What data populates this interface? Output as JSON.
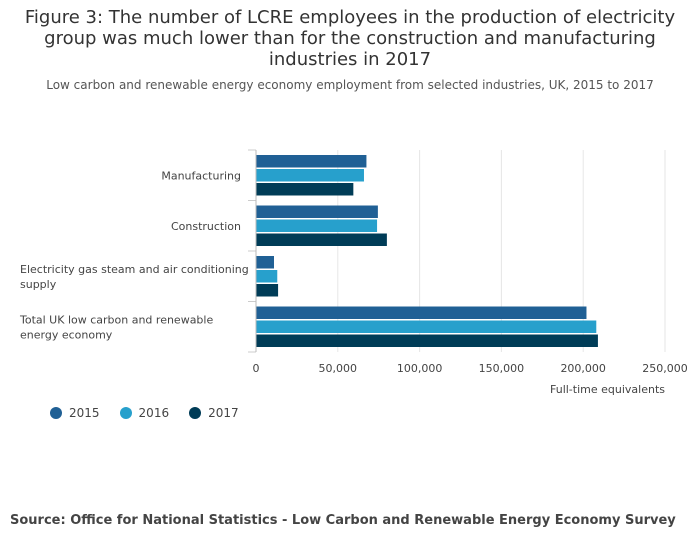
{
  "title_lines": [
    "Figure 3: The number of LCRE employees in the production of electricity",
    "group was much lower than for the construction and manufacturing",
    "industries in 2017"
  ],
  "subtitle": "Low carbon and renewable energy economy employment from selected industries, UK, 2015 to 2017",
  "source": "Source: Office for National Statistics - Low Carbon and Renewable Energy Economy Survey",
  "chart_data": {
    "type": "bar",
    "orientation": "horizontal",
    "categories": [
      [
        "Manufacturing"
      ],
      [
        "Construction"
      ],
      [
        "Electricity gas steam and air conditioning",
        "supply"
      ],
      [
        "Total UK low carbon and renewable",
        "energy economy"
      ]
    ],
    "series": [
      {
        "name": "2015",
        "color": "#206095",
        "values": [
          67500,
          74500,
          11000,
          202000
        ]
      },
      {
        "name": "2016",
        "color": "#27A0CC",
        "values": [
          66000,
          74000,
          13000,
          208000
        ]
      },
      {
        "name": "2017",
        "color": "#003C57",
        "values": [
          59500,
          80000,
          13500,
          209000
        ]
      }
    ],
    "xlim": [
      0,
      250000
    ],
    "xticks": [
      0,
      50000,
      100000,
      150000,
      200000,
      250000
    ],
    "xtick_labels": [
      "0",
      "50,000",
      "100,000",
      "150,000",
      "200,000",
      "250,000"
    ],
    "xlabel": "Full-time equivalents",
    "ylabel": "",
    "grid": true,
    "legend_position": "bottom-left"
  }
}
